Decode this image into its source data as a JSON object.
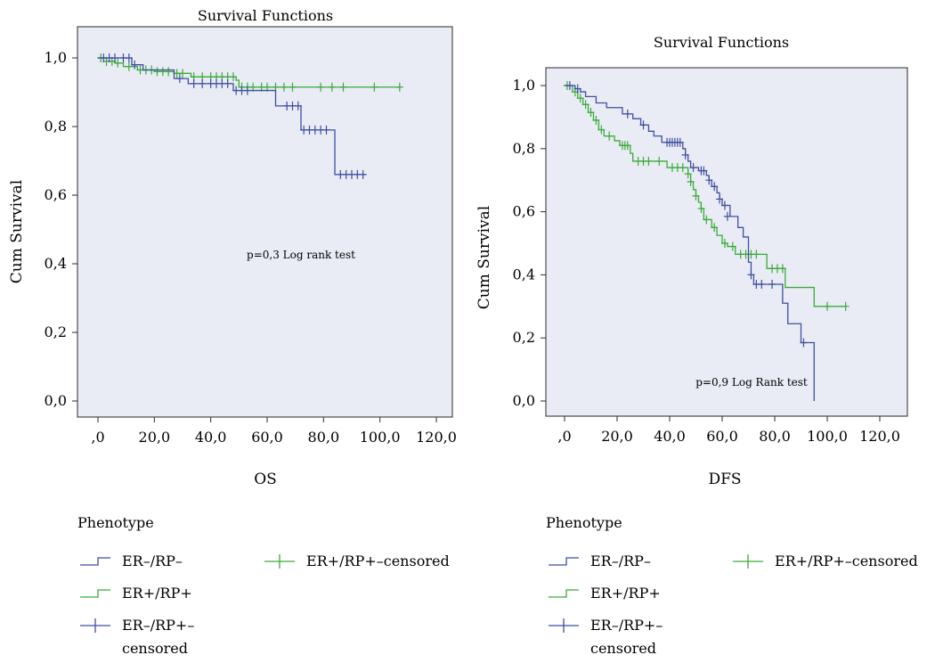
{
  "chart_data": [
    {
      "type": "line",
      "title": "Survival Functions",
      "xlabel": "OS",
      "ylabel": "Cum Survival",
      "xlim": [
        0,
        120
      ],
      "ylim": [
        0,
        1
      ],
      "x_ticks": [
        ",0",
        "20,0",
        "40,0",
        "60,0",
        "80,0",
        "100,0",
        "120,0"
      ],
      "y_ticks": [
        "0,0",
        "0,2",
        "0,4",
        "0,6",
        "0,8",
        "1,0"
      ],
      "annotation": "p=0,3 Log rank test",
      "grid": false,
      "legend_title": "Phenotype",
      "legend": [
        "ER–/RP–",
        "ER+/RP+",
        "ER–/RP+–\ncensored",
        "ER+/RP+–censored"
      ],
      "series": [
        {
          "name": "ER–/RP–",
          "color": "#3f4ea0",
          "steps": [
            [
              0,
              1.0
            ],
            [
              12,
              0.98
            ],
            [
              16,
              0.965
            ],
            [
              27,
              0.94
            ],
            [
              32,
              0.925
            ],
            [
              48,
              0.905
            ],
            [
              63,
              0.86
            ],
            [
              72,
              0.79
            ],
            [
              84,
              0.66
            ],
            [
              95,
              0.66
            ]
          ],
          "censored": [
            [
              2,
              1.0
            ],
            [
              4,
              1.0
            ],
            [
              6,
              1.0
            ],
            [
              9,
              1.0
            ],
            [
              11,
              1.0
            ],
            [
              13,
              0.98
            ],
            [
              29,
              0.94
            ],
            [
              34,
              0.925
            ],
            [
              37,
              0.925
            ],
            [
              40,
              0.925
            ],
            [
              42,
              0.925
            ],
            [
              44,
              0.925
            ],
            [
              46,
              0.925
            ],
            [
              49,
              0.905
            ],
            [
              51,
              0.905
            ],
            [
              53,
              0.905
            ],
            [
              67,
              0.86
            ],
            [
              69,
              0.86
            ],
            [
              71,
              0.86
            ],
            [
              73,
              0.79
            ],
            [
              75,
              0.79
            ],
            [
              77,
              0.79
            ],
            [
              79,
              0.79
            ],
            [
              81,
              0.79
            ],
            [
              86,
              0.66
            ],
            [
              88,
              0.66
            ],
            [
              90,
              0.66
            ],
            [
              92,
              0.66
            ],
            [
              94,
              0.66
            ]
          ]
        },
        {
          "name": "ER+/RP+",
          "color": "#3aaa3a",
          "steps": [
            [
              0,
              1.0
            ],
            [
              3,
              0.99
            ],
            [
              6,
              0.985
            ],
            [
              9,
              0.975
            ],
            [
              14,
              0.965
            ],
            [
              20,
              0.96
            ],
            [
              27,
              0.955
            ],
            [
              33,
              0.945
            ],
            [
              49,
              0.935
            ],
            [
              50,
              0.915
            ],
            [
              107,
              0.915
            ]
          ],
          "censored": [
            [
              1,
              1.0
            ],
            [
              3,
              0.99
            ],
            [
              5,
              0.99
            ],
            [
              7,
              0.985
            ],
            [
              11,
              0.975
            ],
            [
              15,
              0.965
            ],
            [
              17,
              0.965
            ],
            [
              19,
              0.965
            ],
            [
              21,
              0.96
            ],
            [
              23,
              0.96
            ],
            [
              25,
              0.96
            ],
            [
              28,
              0.955
            ],
            [
              30,
              0.955
            ],
            [
              34,
              0.945
            ],
            [
              37,
              0.945
            ],
            [
              40,
              0.945
            ],
            [
              42,
              0.945
            ],
            [
              44,
              0.945
            ],
            [
              46,
              0.945
            ],
            [
              48,
              0.945
            ],
            [
              51,
              0.915
            ],
            [
              53,
              0.915
            ],
            [
              55,
              0.915
            ],
            [
              58,
              0.915
            ],
            [
              60,
              0.915
            ],
            [
              63,
              0.915
            ],
            [
              66,
              0.915
            ],
            [
              69,
              0.915
            ],
            [
              79,
              0.915
            ],
            [
              83,
              0.915
            ],
            [
              87,
              0.915
            ],
            [
              98,
              0.915
            ],
            [
              107,
              0.915
            ]
          ]
        }
      ]
    },
    {
      "type": "line",
      "title": "Survival Functions",
      "xlabel": "DFS",
      "ylabel": "Cum Survival",
      "xlim": [
        0,
        120
      ],
      "ylim": [
        0,
        1
      ],
      "x_ticks": [
        ",0",
        "20,0",
        "40,0",
        "60,0",
        "80,0",
        "100,0",
        "120,0"
      ],
      "y_ticks": [
        "0,0",
        "0,2",
        "0,4",
        "0,6",
        "0,8",
        "1,0"
      ],
      "annotation": "p=0,9 Log Rank test",
      "grid": false,
      "legend_title": "Phenotype",
      "legend": [
        "ER–/RP–",
        "ER+/RP+",
        "ER–/RP+–\ncensored",
        "ER+/RP+–censored"
      ],
      "series": [
        {
          "name": "ER–/RP–",
          "color": "#3f4ea0",
          "steps": [
            [
              0,
              1.0
            ],
            [
              4,
              0.99
            ],
            [
              6,
              0.98
            ],
            [
              8,
              0.965
            ],
            [
              12,
              0.945
            ],
            [
              16,
              0.93
            ],
            [
              22,
              0.91
            ],
            [
              26,
              0.895
            ],
            [
              29,
              0.875
            ],
            [
              32,
              0.855
            ],
            [
              34,
              0.84
            ],
            [
              37,
              0.82
            ],
            [
              45,
              0.8
            ],
            [
              46,
              0.78
            ],
            [
              47,
              0.76
            ],
            [
              48,
              0.74
            ],
            [
              51,
              0.73
            ],
            [
              54,
              0.715
            ],
            [
              55,
              0.7
            ],
            [
              56,
              0.68
            ],
            [
              58,
              0.66
            ],
            [
              59,
              0.64
            ],
            [
              60,
              0.62
            ],
            [
              63,
              0.585
            ],
            [
              66,
              0.55
            ],
            [
              68,
              0.52
            ],
            [
              70,
              0.44
            ],
            [
              71,
              0.4
            ],
            [
              72,
              0.37
            ],
            [
              83,
              0.31
            ],
            [
              85,
              0.245
            ],
            [
              90,
              0.185
            ],
            [
              95,
              0.0
            ]
          ],
          "censored": [
            [
              2,
              1.0
            ],
            [
              5,
              0.99
            ],
            [
              24,
              0.91
            ],
            [
              30,
              0.875
            ],
            [
              39,
              0.82
            ],
            [
              40,
              0.82
            ],
            [
              41,
              0.82
            ],
            [
              42,
              0.82
            ],
            [
              43,
              0.82
            ],
            [
              44,
              0.82
            ],
            [
              46,
              0.78
            ],
            [
              49,
              0.74
            ],
            [
              52,
              0.73
            ],
            [
              53,
              0.73
            ],
            [
              55,
              0.7
            ],
            [
              57,
              0.68
            ],
            [
              59,
              0.64
            ],
            [
              61,
              0.62
            ],
            [
              62,
              0.585
            ],
            [
              71,
              0.4
            ],
            [
              73,
              0.37
            ],
            [
              75,
              0.37
            ],
            [
              79,
              0.37
            ],
            [
              91,
              0.185
            ]
          ]
        },
        {
          "name": "ER+/RP+",
          "color": "#3aaa3a",
          "steps": [
            [
              0,
              1.0
            ],
            [
              3,
              0.98
            ],
            [
              5,
              0.96
            ],
            [
              7,
              0.94
            ],
            [
              9,
              0.915
            ],
            [
              11,
              0.89
            ],
            [
              13,
              0.86
            ],
            [
              15,
              0.84
            ],
            [
              19,
              0.825
            ],
            [
              21,
              0.81
            ],
            [
              25,
              0.785
            ],
            [
              26,
              0.76
            ],
            [
              39,
              0.74
            ],
            [
              47,
              0.72
            ],
            [
              48,
              0.695
            ],
            [
              49,
              0.67
            ],
            [
              50,
              0.65
            ],
            [
              51,
              0.63
            ],
            [
              52,
              0.61
            ],
            [
              53,
              0.575
            ],
            [
              56,
              0.55
            ],
            [
              58,
              0.525
            ],
            [
              60,
              0.5
            ],
            [
              62,
              0.49
            ],
            [
              65,
              0.465
            ],
            [
              77,
              0.42
            ],
            [
              84,
              0.36
            ],
            [
              95,
              0.3
            ],
            [
              107,
              0.3
            ]
          ],
          "censored": [
            [
              1,
              1.0
            ],
            [
              4,
              0.98
            ],
            [
              6,
              0.96
            ],
            [
              8,
              0.94
            ],
            [
              10,
              0.915
            ],
            [
              12,
              0.89
            ],
            [
              14,
              0.86
            ],
            [
              17,
              0.84
            ],
            [
              22,
              0.81
            ],
            [
              23,
              0.81
            ],
            [
              24,
              0.81
            ],
            [
              28,
              0.76
            ],
            [
              30,
              0.76
            ],
            [
              32,
              0.76
            ],
            [
              36,
              0.76
            ],
            [
              41,
              0.74
            ],
            [
              43,
              0.74
            ],
            [
              45,
              0.74
            ],
            [
              47,
              0.72
            ],
            [
              48,
              0.695
            ],
            [
              50,
              0.65
            ],
            [
              52,
              0.61
            ],
            [
              54,
              0.575
            ],
            [
              57,
              0.55
            ],
            [
              61,
              0.5
            ],
            [
              64,
              0.49
            ],
            [
              67,
              0.465
            ],
            [
              69,
              0.465
            ],
            [
              71,
              0.465
            ],
            [
              73,
              0.465
            ],
            [
              79,
              0.42
            ],
            [
              81,
              0.42
            ],
            [
              83,
              0.42
            ],
            [
              100,
              0.3
            ],
            [
              107,
              0.3
            ]
          ]
        }
      ]
    }
  ]
}
